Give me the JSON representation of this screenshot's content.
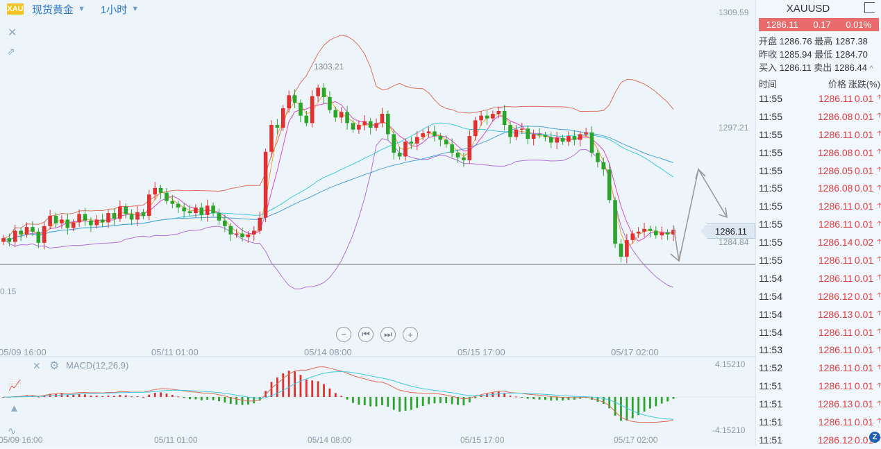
{
  "header": {
    "logo_text": "XAU",
    "symbol_select": "现货黄金",
    "period_select": "1小时"
  },
  "panel": {
    "symbol": "XAUUSD",
    "price": "1286.11",
    "change": "0.17",
    "change_pct": "0.01%",
    "open_label": "开盘",
    "open": "1286.76",
    "high_label": "最高",
    "high": "1287.38",
    "prev_label": "昨收",
    "prev": "1285.94",
    "low_label": "最低",
    "low": "1284.70",
    "bid_label": "买入",
    "bid": "1286.11",
    "ask_label": "卖出",
    "ask": "1286.44",
    "col_time": "时间",
    "col_price": "价格",
    "col_change": "涨跌(%)",
    "ticks": [
      {
        "t": "11:55",
        "p": "1286.11",
        "c": "0.01"
      },
      {
        "t": "11:55",
        "p": "1286.08",
        "c": "0.01"
      },
      {
        "t": "11:55",
        "p": "1286.11",
        "c": "0.01"
      },
      {
        "t": "11:55",
        "p": "1286.08",
        "c": "0.01"
      },
      {
        "t": "11:55",
        "p": "1286.05",
        "c": "0.01"
      },
      {
        "t": "11:55",
        "p": "1286.08",
        "c": "0.01"
      },
      {
        "t": "11:55",
        "p": "1286.11",
        "c": "0.01"
      },
      {
        "t": "11:55",
        "p": "1286.11",
        "c": "0.01"
      },
      {
        "t": "11:55",
        "p": "1286.14",
        "c": "0.02"
      },
      {
        "t": "11:55",
        "p": "1286.11",
        "c": "0.01"
      },
      {
        "t": "11:54",
        "p": "1286.11",
        "c": "0.01"
      },
      {
        "t": "11:54",
        "p": "1286.12",
        "c": "0.01"
      },
      {
        "t": "11:54",
        "p": "1286.13",
        "c": "0.01"
      },
      {
        "t": "11:54",
        "p": "1286.11",
        "c": "0.01"
      },
      {
        "t": "11:53",
        "p": "1286.11",
        "c": "0.01"
      },
      {
        "t": "11:52",
        "p": "1286.11",
        "c": "0.01"
      },
      {
        "t": "11:51",
        "p": "1286.11",
        "c": "0.01"
      },
      {
        "t": "11:51",
        "p": "1286.13",
        "c": "0.01"
      },
      {
        "t": "11:51",
        "p": "1286.11",
        "c": "0.01"
      },
      {
        "t": "11:51",
        "p": "1286.12",
        "c": "0.01"
      }
    ]
  },
  "chart_data": {
    "type": "candlestick",
    "price_axis": {
      "labels": [
        "1309.59",
        "1297.21",
        "1284.84"
      ],
      "left_partial_label": "0.15"
    },
    "current_price_tag": "1286.11",
    "peak_annotation": "1303.21",
    "x_labels": [
      "05/09 16:00",
      "05/11 01:00",
      "05/14 08:00",
      "05/15 17:00",
      "05/17 02:00"
    ],
    "macd": {
      "label": "MACD(12,26,9)",
      "max_label": "4.15210",
      "min_label": "-4.15210"
    },
    "colors": {
      "up": "#e0302f",
      "down": "#2aa52a",
      "boll": "#e0705a",
      "ma1": "#e048c8",
      "ma2": "#f0a040",
      "ma3": "#40c8e0",
      "ma4": "#4aa0e0",
      "lower_band": "#b070e0"
    },
    "closes": [
      1285.2,
      1284.8,
      1286.0,
      1285.6,
      1286.4,
      1285.9,
      1284.7,
      1286.5,
      1287.6,
      1286.8,
      1287.2,
      1286.3,
      1286.9,
      1287.8,
      1287.1,
      1286.6,
      1287.2,
      1286.9,
      1287.9,
      1287.3,
      1288.6,
      1287.8,
      1287.2,
      1288.0,
      1287.6,
      1289.9,
      1290.6,
      1290.1,
      1289.2,
      1288.9,
      1288.5,
      1288.1,
      1287.9,
      1288.5,
      1287.7,
      1288.7,
      1287.9,
      1287.1,
      1286.5,
      1285.6,
      1285.7,
      1285.3,
      1285.6,
      1286.0,
      1287.4,
      1294.5,
      1297.4,
      1297.1,
      1299.2,
      1300.6,
      1299.8,
      1298.4,
      1297.6,
      1300.5,
      1301.4,
      1300.4,
      1299.0,
      1298.2,
      1298.8,
      1297.6,
      1296.9,
      1297.4,
      1297.8,
      1297.1,
      1297.6,
      1298.6,
      1296.4,
      1294.4,
      1294.0,
      1295.6,
      1295.4,
      1296.1,
      1296.5,
      1296.7,
      1296.2,
      1295.8,
      1295.3,
      1294.4,
      1293.9,
      1293.6,
      1296.2,
      1297.9,
      1298.4,
      1298.1,
      1298.6,
      1298.9,
      1297.4,
      1296.1,
      1296.9,
      1297.0,
      1295.9,
      1296.4,
      1296.3,
      1296.1,
      1295.5,
      1296.0,
      1295.6,
      1296.2,
      1295.8,
      1296.4,
      1296.6,
      1294.4,
      1293.4,
      1292.6,
      1289.3,
      1284.6,
      1283.2,
      1285.0,
      1285.7,
      1285.9,
      1286.2,
      1286.0,
      1285.5,
      1285.8,
      1285.6,
      1286.1
    ],
    "projection": [
      "up",
      "down",
      "down"
    ]
  }
}
